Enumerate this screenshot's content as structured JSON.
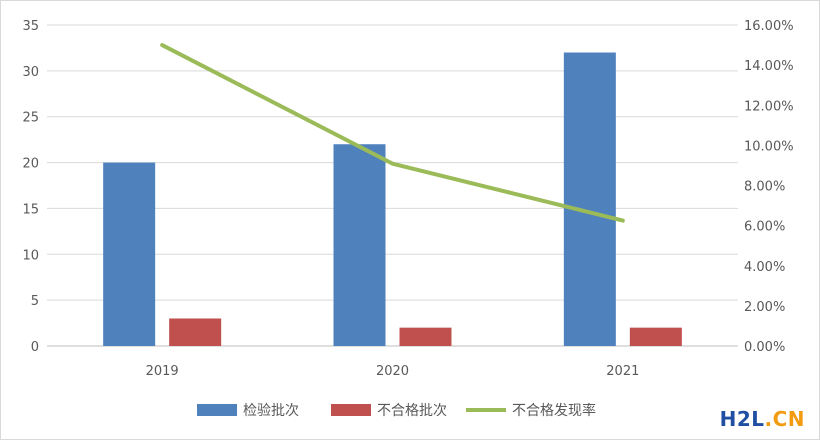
{
  "chart_data": {
    "type": "bar+line",
    "categories": [
      "2019",
      "2020",
      "2021"
    ],
    "series": [
      {
        "name": "检验批次",
        "type": "bar",
        "axis": "left",
        "color": "#4f81bd",
        "values": [
          20,
          22,
          32
        ]
      },
      {
        "name": "不合格批次",
        "type": "bar",
        "axis": "left",
        "color": "#c0504d",
        "values": [
          3,
          2,
          2
        ]
      },
      {
        "name": "不合格发现率",
        "type": "line",
        "axis": "right",
        "color": "#9bbb59",
        "values": [
          0.15,
          0.0909,
          0.0625
        ]
      }
    ],
    "left_axis": {
      "min": 0,
      "max": 35,
      "step": 5,
      "ticks": [
        "0",
        "5",
        "10",
        "15",
        "20",
        "25",
        "30",
        "35"
      ]
    },
    "right_axis": {
      "min": 0,
      "max": 0.16,
      "step": 0.02,
      "ticks": [
        "0.00%",
        "2.00%",
        "4.00%",
        "6.00%",
        "8.00%",
        "10.00%",
        "12.00%",
        "14.00%",
        "16.00%"
      ]
    },
    "grid": true,
    "legend_position": "bottom"
  },
  "watermark": {
    "part1": "H2L",
    "part2": ".CN"
  }
}
